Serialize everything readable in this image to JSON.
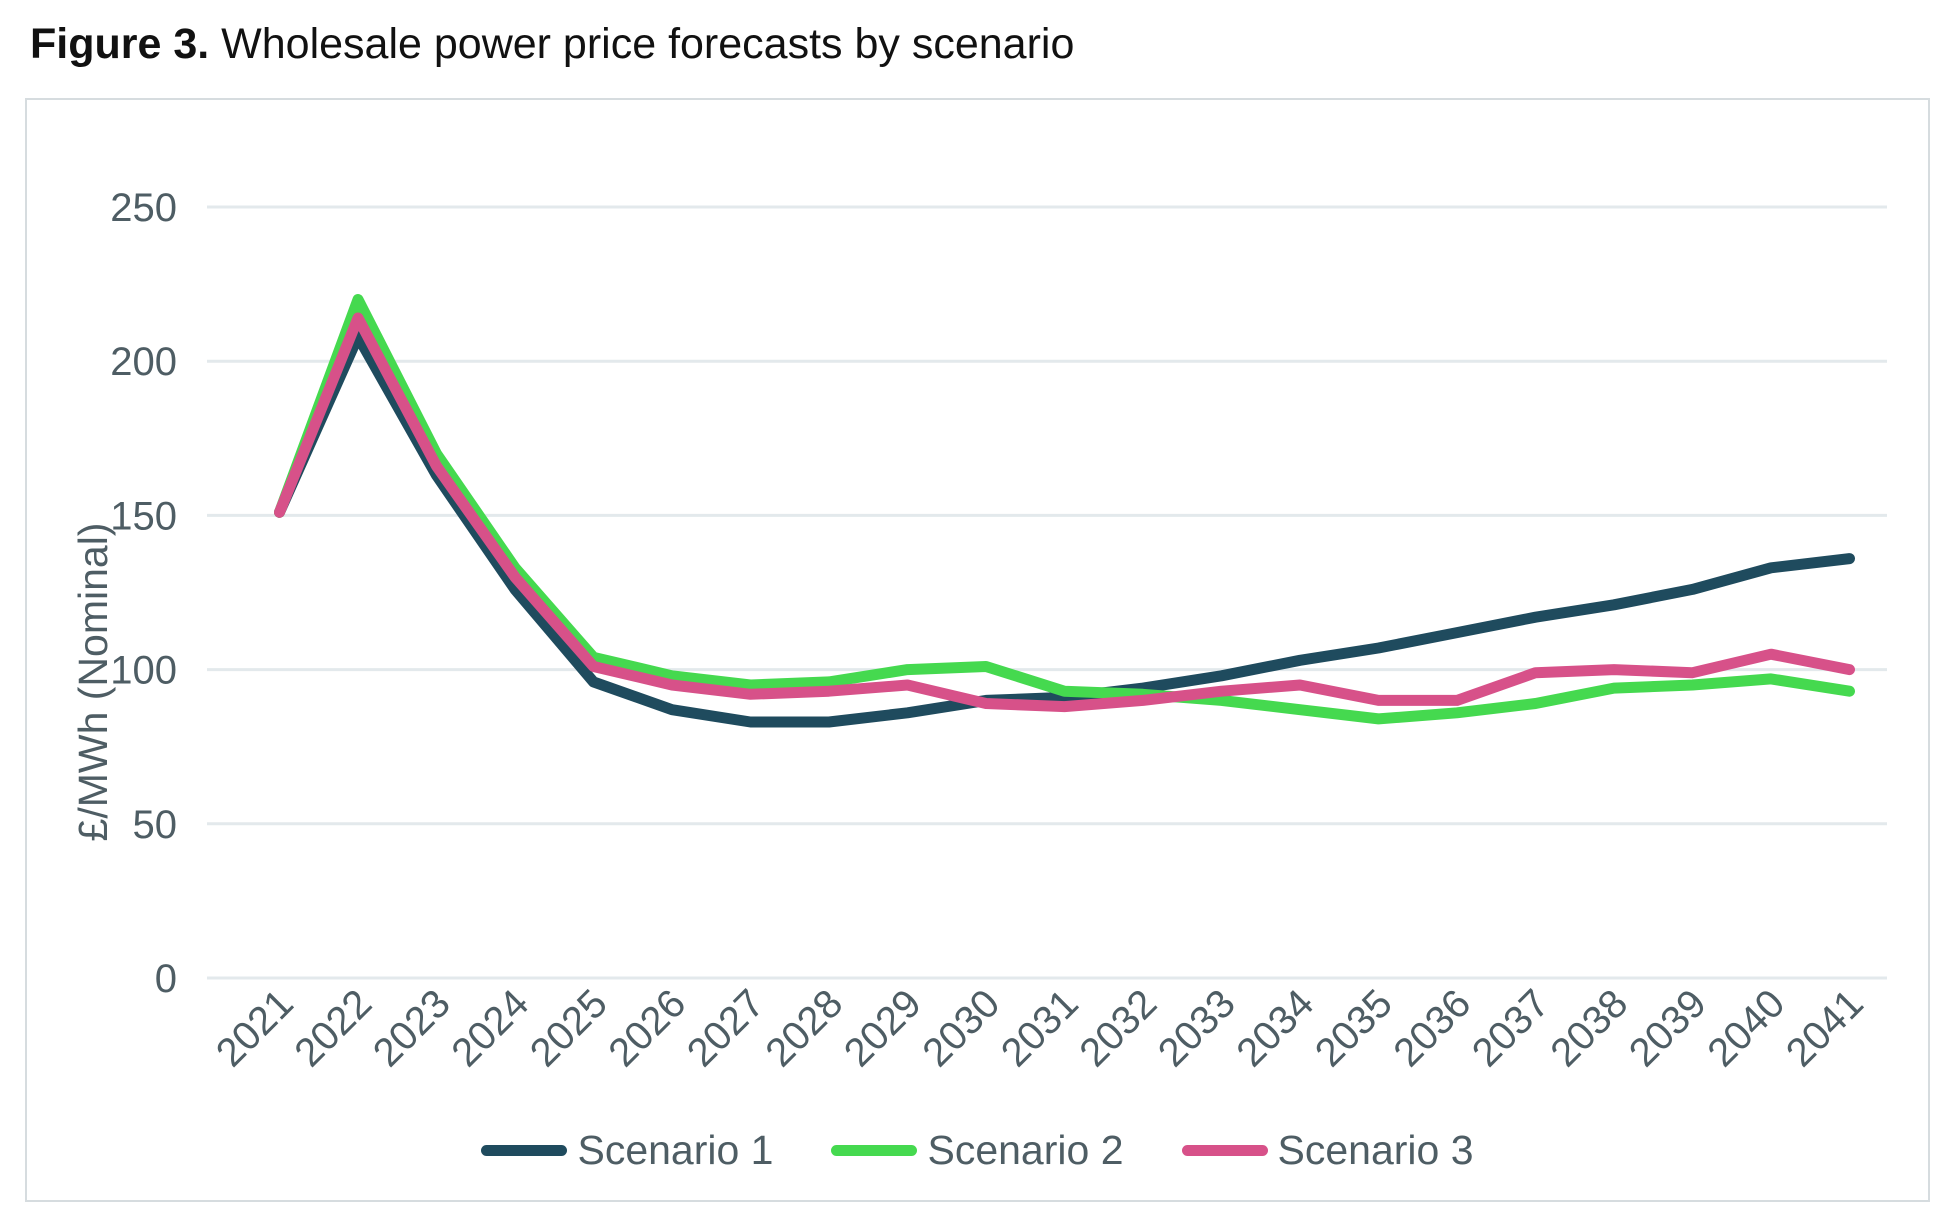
{
  "title": {
    "prefix": "Figure 3.",
    "text": " Wholesale power price forecasts by scenario"
  },
  "chart_data": {
    "type": "line",
    "x": [
      2021,
      2022,
      2023,
      2024,
      2025,
      2026,
      2027,
      2028,
      2029,
      2030,
      2031,
      2032,
      2033,
      2034,
      2035,
      2036,
      2037,
      2038,
      2039,
      2040,
      2041
    ],
    "series": [
      {
        "name": "Scenario 1",
        "color": "#1F4B5E",
        "values": [
          151,
          208,
          163,
          126,
          96,
          87,
          83,
          83,
          86,
          90,
          91,
          94,
          98,
          103,
          107,
          112,
          117,
          121,
          126,
          133,
          136
        ]
      },
      {
        "name": "Scenario 2",
        "color": "#45D94F",
        "values": [
          151,
          220,
          170,
          133,
          104,
          98,
          95,
          96,
          100,
          101,
          93,
          92,
          90,
          87,
          84,
          86,
          89,
          94,
          95,
          97,
          93
        ]
      },
      {
        "name": "Scenario 3",
        "color": "#D75189",
        "values": [
          151,
          214,
          166,
          130,
          101,
          95,
          92,
          93,
          95,
          89,
          88,
          90,
          93,
          95,
          90,
          90,
          99,
          100,
          99,
          105,
          100
        ]
      }
    ],
    "ylabel": "£/MWh (Nominal)",
    "yticks": [
      0,
      50,
      100,
      150,
      200,
      250
    ],
    "ylim": [
      0,
      250
    ],
    "grid": true,
    "legend_position": "bottom"
  },
  "colors": {
    "gridline": "#E3E9EC",
    "axis_text": "#4E5D64",
    "panel_border": "#D6DCDF",
    "title_text": "#111111"
  }
}
